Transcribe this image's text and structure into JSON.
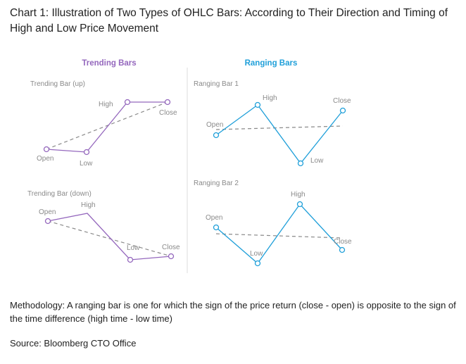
{
  "title": "Chart 1: Illustration of Two Types of OHLC Bars: According to Their Direction and Timing of High and Low Price Movement",
  "colors": {
    "trending": "#9467bd",
    "ranging": "#1f9fd9",
    "trend_line": "#8a8a8a"
  },
  "sections": {
    "trending": {
      "heading": "Trending Bars",
      "up": {
        "title": "Trending Bar (up)",
        "open": "Open",
        "low": "Low",
        "high": "High",
        "close": "Close"
      },
      "down": {
        "title": "Trending Bar (down)",
        "open": "Open",
        "high": "High",
        "low": "Low",
        "close": "Close"
      }
    },
    "ranging": {
      "heading": "Ranging Bars",
      "bar1": {
        "title": "Ranging Bar 1",
        "open": "Open",
        "high": "High",
        "low": "Low",
        "close": "Close"
      },
      "bar2": {
        "title": "Ranging Bar 2",
        "open": "Open",
        "low": "Low",
        "high": "High",
        "close": "Close"
      }
    }
  },
  "methodology": "Methodology: A ranging bar is one for which the sign of the price return (close - open) is opposite to the sign of the time difference (high time - low time)",
  "source": "Source: Bloomberg CTO Office"
}
